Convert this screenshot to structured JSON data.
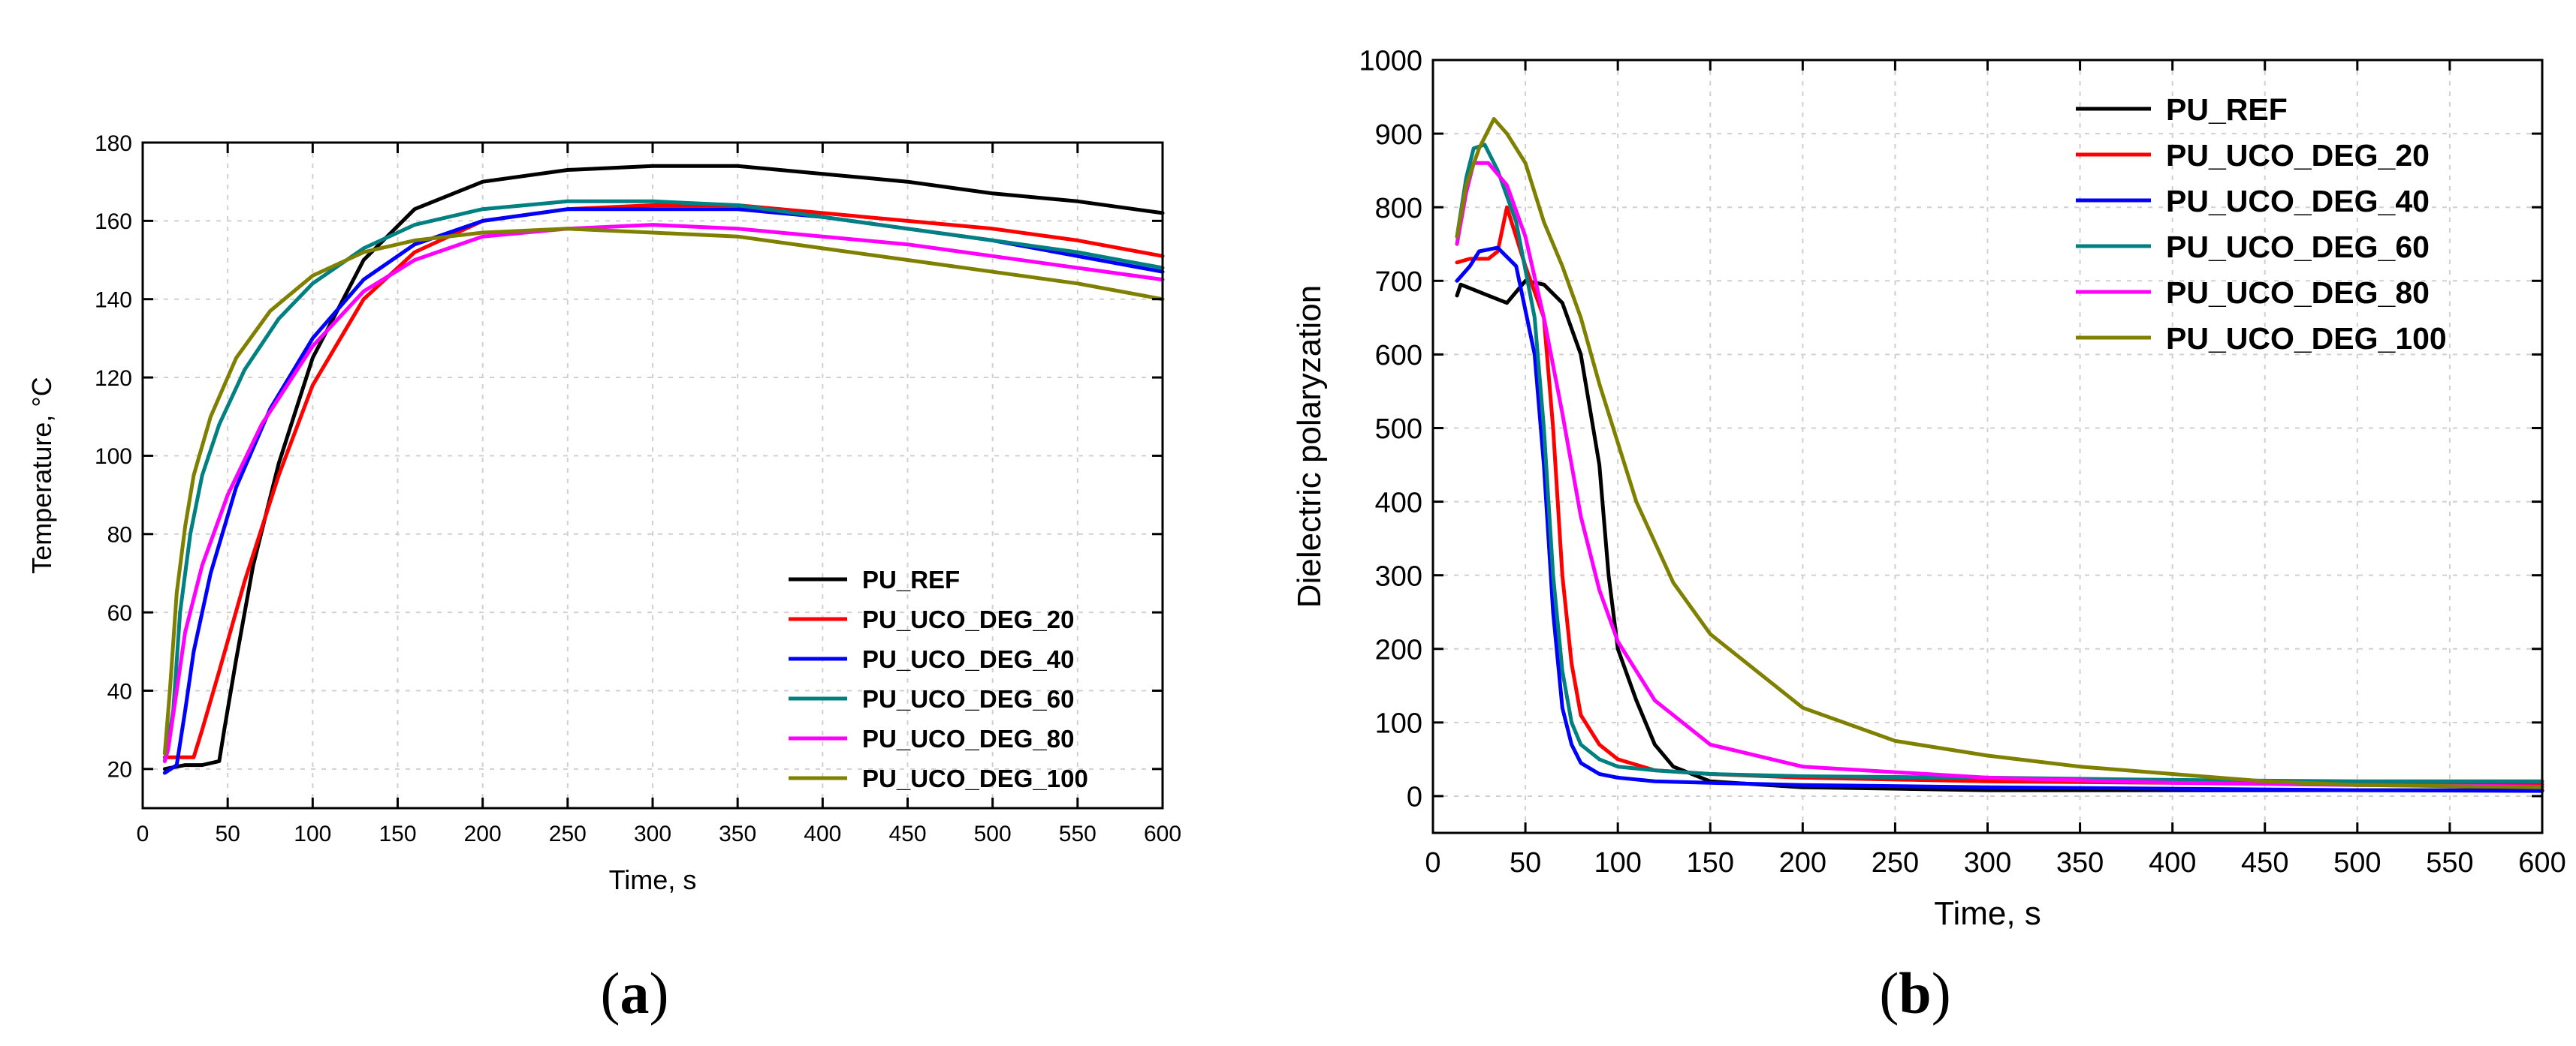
{
  "chart_data": [
    {
      "type": "line",
      "panel_label": "a",
      "title": "",
      "xlabel": "Time, s",
      "ylabel": "Temperature, °C",
      "xlim": [
        0,
        600
      ],
      "ylim": [
        10,
        180
      ],
      "xticks": [
        0,
        50,
        100,
        150,
        200,
        250,
        300,
        350,
        400,
        450,
        500,
        550,
        600
      ],
      "yticks": [
        20,
        40,
        60,
        80,
        100,
        120,
        140,
        160,
        180
      ],
      "grid": true,
      "legend_position": "bottom-right",
      "series": [
        {
          "name": "PU_REF",
          "color": "#000000",
          "x": [
            13,
            25,
            35,
            45,
            48,
            55,
            65,
            80,
            100,
            130,
            160,
            200,
            250,
            300,
            350,
            400,
            450,
            500,
            550,
            600
          ],
          "values": [
            20,
            21,
            21,
            22,
            30,
            48,
            72,
            98,
            125,
            150,
            163,
            170,
            173,
            174,
            174,
            172,
            170,
            167,
            165,
            162
          ]
        },
        {
          "name": "PU_UCO_DEG_20",
          "color": "#ff0000",
          "x": [
            13,
            20,
            30,
            35,
            45,
            60,
            80,
            100,
            130,
            160,
            200,
            250,
            300,
            350,
            400,
            450,
            500,
            550,
            600
          ],
          "values": [
            23,
            23,
            23,
            30,
            45,
            68,
            95,
            118,
            140,
            152,
            160,
            163,
            164,
            164,
            162,
            160,
            158,
            155,
            151
          ]
        },
        {
          "name": "PU_UCO_DEG_40",
          "color": "#0000ff",
          "x": [
            13,
            20,
            25,
            30,
            40,
            55,
            75,
            100,
            130,
            160,
            200,
            250,
            300,
            350,
            400,
            450,
            500,
            550,
            600
          ],
          "values": [
            19,
            21,
            35,
            50,
            70,
            92,
            112,
            130,
            145,
            154,
            160,
            163,
            163,
            163,
            161,
            158,
            155,
            151,
            147
          ]
        },
        {
          "name": "PU_UCO_DEG_60",
          "color": "#008080",
          "x": [
            13,
            18,
            22,
            28,
            35,
            45,
            60,
            80,
            100,
            130,
            160,
            200,
            250,
            300,
            350,
            400,
            450,
            500,
            550,
            600
          ],
          "values": [
            22,
            35,
            60,
            80,
            95,
            108,
            122,
            135,
            144,
            153,
            159,
            163,
            165,
            165,
            164,
            161,
            158,
            155,
            152,
            148
          ]
        },
        {
          "name": "PU_UCO_DEG_80",
          "color": "#ff00ff",
          "x": [
            13,
            15,
            20,
            25,
            35,
            50,
            70,
            100,
            130,
            160,
            200,
            250,
            300,
            350,
            400,
            450,
            500,
            550,
            600
          ],
          "values": [
            22,
            25,
            40,
            55,
            72,
            90,
            108,
            128,
            142,
            150,
            156,
            158,
            159,
            158,
            156,
            154,
            151,
            148,
            145
          ]
        },
        {
          "name": "PU_UCO_DEG_100",
          "color": "#808000",
          "x": [
            13,
            16,
            20,
            25,
            30,
            40,
            55,
            75,
            100,
            130,
            160,
            200,
            250,
            300,
            350,
            400,
            450,
            500,
            550,
            600
          ],
          "values": [
            24,
            40,
            65,
            82,
            95,
            110,
            125,
            137,
            146,
            152,
            155,
            157,
            158,
            157,
            156,
            153,
            150,
            147,
            144,
            140
          ]
        }
      ]
    },
    {
      "type": "line",
      "panel_label": "b",
      "title": "",
      "xlabel": "Time, s",
      "ylabel": "Dielectric polaryzation",
      "xlim": [
        0,
        600
      ],
      "ylim": [
        -50,
        1000
      ],
      "xticks": [
        0,
        50,
        100,
        150,
        200,
        250,
        300,
        350,
        400,
        450,
        500,
        550,
        600
      ],
      "yticks": [
        0,
        100,
        200,
        300,
        400,
        500,
        600,
        700,
        800,
        900,
        1000
      ],
      "grid": true,
      "legend_position": "top-right",
      "series": [
        {
          "name": "PU_REF",
          "color": "#000000",
          "x": [
            13,
            15,
            20,
            30,
            40,
            50,
            60,
            70,
            80,
            90,
            95,
            100,
            110,
            120,
            130,
            150,
            200,
            300,
            400,
            500,
            600
          ],
          "values": [
            680,
            695,
            690,
            680,
            670,
            700,
            695,
            670,
            600,
            450,
            300,
            200,
            130,
            70,
            40,
            20,
            12,
            8,
            8,
            8,
            8
          ]
        },
        {
          "name": "PU_UCO_DEG_20",
          "color": "#ff0000",
          "x": [
            13,
            20,
            30,
            35,
            40,
            50,
            60,
            65,
            70,
            75,
            80,
            90,
            100,
            120,
            150,
            200,
            300,
            400,
            500,
            600
          ],
          "values": [
            725,
            730,
            730,
            740,
            800,
            720,
            650,
            500,
            300,
            180,
            110,
            70,
            50,
            35,
            30,
            25,
            20,
            18,
            17,
            16
          ]
        },
        {
          "name": "PU_UCO_DEG_40",
          "color": "#0000ff",
          "x": [
            13,
            20,
            25,
            35,
            45,
            55,
            60,
            65,
            70,
            75,
            80,
            90,
            100,
            120,
            150,
            200,
            300,
            400,
            500,
            600
          ],
          "values": [
            700,
            720,
            740,
            745,
            720,
            600,
            450,
            250,
            120,
            70,
            45,
            30,
            25,
            20,
            18,
            15,
            12,
            10,
            8,
            7
          ]
        },
        {
          "name": "PU_UCO_DEG_60",
          "color": "#008080",
          "x": [
            13,
            18,
            22,
            28,
            35,
            45,
            55,
            60,
            65,
            70,
            75,
            80,
            90,
            100,
            120,
            150,
            200,
            300,
            400,
            500,
            600
          ],
          "values": [
            760,
            840,
            880,
            885,
            850,
            780,
            650,
            500,
            300,
            170,
            100,
            70,
            50,
            40,
            35,
            30,
            27,
            25,
            22,
            20,
            20
          ]
        },
        {
          "name": "PU_UCO_DEG_80",
          "color": "#ff00ff",
          "x": [
            13,
            18,
            22,
            30,
            40,
            50,
            60,
            70,
            80,
            90,
            100,
            120,
            150,
            200,
            300,
            400,
            500,
            600
          ],
          "values": [
            750,
            820,
            860,
            860,
            830,
            760,
            650,
            520,
            380,
            280,
            210,
            130,
            70,
            40,
            25,
            18,
            15,
            13
          ]
        },
        {
          "name": "PU_UCO_DEG_100",
          "color": "#808000",
          "x": [
            13,
            18,
            25,
            33,
            40,
            50,
            60,
            70,
            80,
            90,
            100,
            110,
            130,
            150,
            200,
            250,
            300,
            350,
            400,
            450,
            500,
            600
          ],
          "values": [
            760,
            830,
            880,
            920,
            900,
            860,
            780,
            720,
            650,
            560,
            480,
            400,
            290,
            220,
            120,
            75,
            55,
            40,
            30,
            20,
            15,
            12
          ]
        }
      ]
    }
  ]
}
